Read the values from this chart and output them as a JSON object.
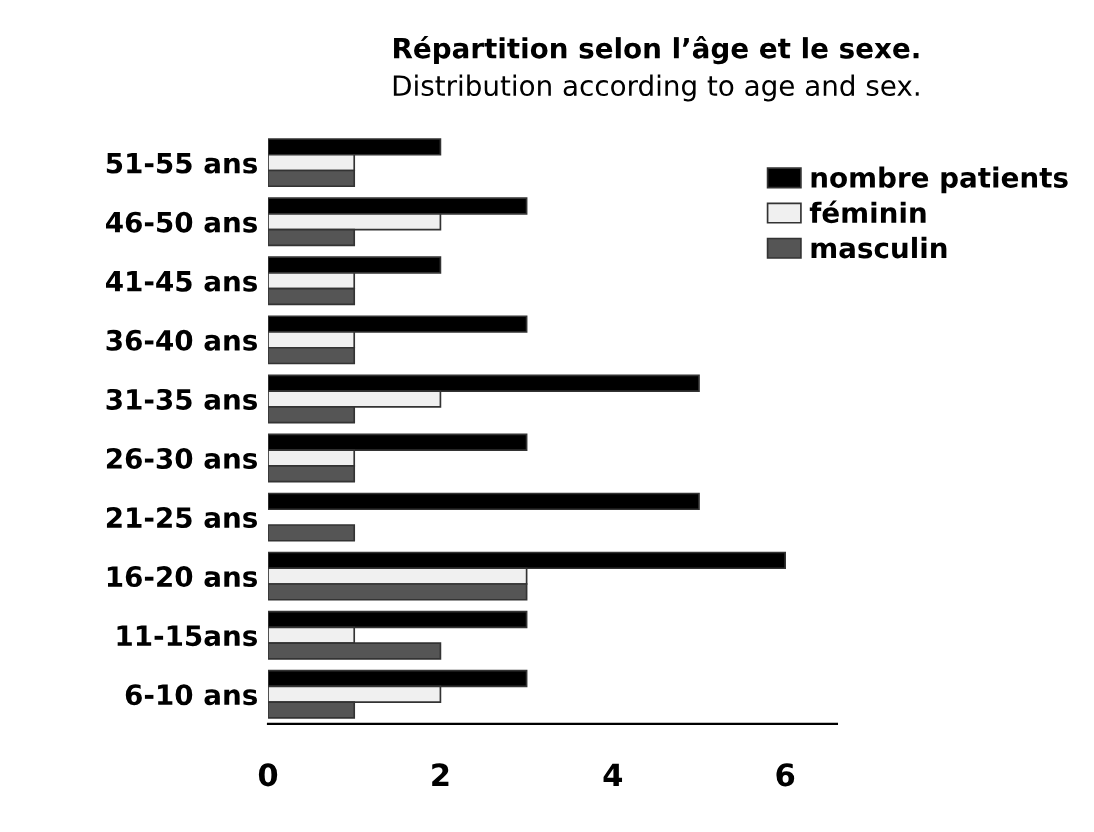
{
  "chart_data": {
    "type": "bar",
    "orientation": "horizontal",
    "title": "Répartition selon l’âge et le sexe.",
    "subtitle": "Distribution according to age and sex.",
    "categories": [
      "51-55 ans",
      "46-50 ans",
      "41-45 ans",
      "36-40 ans",
      "31-35 ans",
      "26-30 ans",
      "21-25 ans",
      "16-20 ans",
      "11-15ans",
      "6-10 ans"
    ],
    "series": [
      {
        "name": "nombre patients",
        "color": "#000000",
        "values": [
          2,
          3,
          2,
          3,
          5,
          3,
          5,
          6,
          3,
          3
        ]
      },
      {
        "name": "féminin",
        "color": "#f0f0f0",
        "values": [
          1,
          2,
          1,
          1,
          2,
          1,
          null,
          3,
          1,
          2
        ]
      },
      {
        "name": "masculin",
        "color": "#555555",
        "values": [
          1,
          1,
          1,
          1,
          1,
          1,
          1,
          3,
          2,
          1
        ]
      }
    ],
    "xlim": [
      0,
      6.6
    ],
    "xticks": [
      0,
      2,
      4,
      6
    ],
    "grid": false,
    "legend": "top right"
  }
}
